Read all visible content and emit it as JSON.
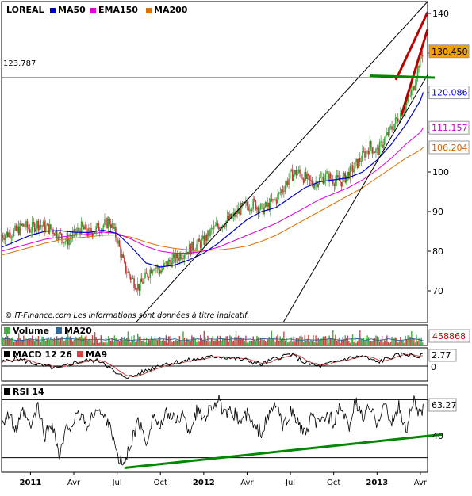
{
  "chart_data": [
    {
      "type": "line",
      "panel": "price",
      "title": "",
      "ticker": "LOREAL",
      "legend": [
        {
          "name": "MA50",
          "color": "#0000cc"
        },
        {
          "name": "EMA150",
          "color": "#dd00dd"
        },
        {
          "name": "MA200",
          "color": "#e07000"
        }
      ],
      "ylim": [
        62,
        143
      ],
      "yticks": [
        70,
        80,
        90,
        100,
        110,
        120,
        130,
        140
      ],
      "ytick_labels": [
        "70",
        "80",
        "90",
        "100",
        "",
        "",
        "",
        "140"
      ],
      "xlim_months": [
        -2,
        27.5
      ],
      "x_tick_months": [
        0,
        3,
        6,
        9,
        12,
        15,
        18,
        21,
        24,
        27
      ],
      "x_tick_labels": [
        "2011",
        "Avr",
        "Jul",
        "Oct",
        "2012",
        "Avr",
        "Jul",
        "Oct",
        "2013",
        "Avr"
      ],
      "x_bold": [
        true,
        false,
        false,
        false,
        true,
        false,
        false,
        false,
        true,
        false
      ],
      "price_badges": [
        {
          "value": "130.450",
          "y": 130.45,
          "color": "#000000",
          "bg": "#f0a000"
        },
        {
          "value": "120.086",
          "y": 120.086,
          "color": "#0000cc",
          "bg": "#ffffff"
        },
        {
          "value": "111.157",
          "y": 111.157,
          "color": "#cc00cc",
          "bg": "#ffffff"
        },
        {
          "value": "106.204",
          "y": 106.204,
          "color": "#d06000",
          "bg": "#ffffff"
        }
      ],
      "horizontal_level": {
        "label": "123.787",
        "value": 123.787
      },
      "annotation": "© IT-Finance.com     Les informations sont données à titre indicatif.",
      "close_points": [
        [
          -2,
          84
        ],
        [
          -1.5,
          84.5
        ],
        [
          -1,
          85
        ],
        [
          -0.5,
          86.5
        ],
        [
          0,
          85.5
        ],
        [
          0.5,
          87
        ],
        [
          1,
          86
        ],
        [
          1.5,
          85.5
        ],
        [
          2,
          84
        ],
        [
          2.5,
          82.5
        ],
        [
          3,
          84
        ],
        [
          3.5,
          86
        ],
        [
          4,
          84.5
        ],
        [
          4.5,
          85.5
        ],
        [
          5,
          86.5
        ],
        [
          5.5,
          87.5
        ],
        [
          6,
          83
        ],
        [
          6.5,
          76
        ],
        [
          7,
          73
        ],
        [
          7.5,
          71
        ],
        [
          8,
          73.5
        ],
        [
          8.5,
          76.5
        ],
        [
          9,
          75
        ],
        [
          9.5,
          77
        ],
        [
          10,
          78
        ],
        [
          10.5,
          79.5
        ],
        [
          11,
          80.5
        ],
        [
          11.5,
          81.5
        ],
        [
          12,
          82.5
        ],
        [
          12.5,
          85
        ],
        [
          13,
          86.5
        ],
        [
          13.5,
          87.5
        ],
        [
          14,
          88.5
        ],
        [
          14.5,
          90.5
        ],
        [
          15,
          91.5
        ],
        [
          15.5,
          92
        ],
        [
          16,
          90.5
        ],
        [
          16.5,
          91.5
        ],
        [
          17,
          93
        ],
        [
          17.5,
          96
        ],
        [
          18,
          99
        ],
        [
          18.5,
          100
        ],
        [
          19,
          98.5
        ],
        [
          19.5,
          97
        ],
        [
          20,
          98
        ],
        [
          20.5,
          99
        ],
        [
          21,
          98
        ],
        [
          21.5,
          97.5
        ],
        [
          22,
          99.5
        ],
        [
          22.5,
          101.5
        ],
        [
          23,
          104
        ],
        [
          23.5,
          106.5
        ],
        [
          24,
          105
        ],
        [
          24.5,
          108
        ],
        [
          25,
          111
        ],
        [
          25.5,
          114
        ],
        [
          26,
          117
        ],
        [
          26.5,
          121
        ],
        [
          26.8,
          126
        ],
        [
          27,
          129
        ],
        [
          27.2,
          130.45
        ]
      ],
      "ma50_points": [
        [
          -2,
          81
        ],
        [
          -1,
          82.5
        ],
        [
          0,
          84
        ],
        [
          1,
          85
        ],
        [
          2,
          85.2
        ],
        [
          3,
          84.8
        ],
        [
          4,
          84.7
        ],
        [
          5,
          85.3
        ],
        [
          6,
          84.5
        ],
        [
          7,
          81
        ],
        [
          8,
          77
        ],
        [
          9,
          76
        ],
        [
          10,
          76.5
        ],
        [
          11,
          77.8
        ],
        [
          12,
          79.5
        ],
        [
          13,
          82
        ],
        [
          14,
          85
        ],
        [
          15,
          88
        ],
        [
          16,
          90
        ],
        [
          17,
          91
        ],
        [
          18,
          93.5
        ],
        [
          19,
          96
        ],
        [
          20,
          97.5
        ],
        [
          21,
          98
        ],
        [
          22,
          98.5
        ],
        [
          23,
          100
        ],
        [
          24,
          103
        ],
        [
          25,
          107
        ],
        [
          26,
          112
        ],
        [
          27,
          118
        ],
        [
          27.2,
          120.086
        ]
      ],
      "ema150_points": [
        [
          -2,
          80
        ],
        [
          -1,
          81
        ],
        [
          0,
          82
        ],
        [
          1,
          83
        ],
        [
          2,
          83.5
        ],
        [
          3,
          84
        ],
        [
          4,
          84.3
        ],
        [
          5,
          84.8
        ],
        [
          6,
          84.5
        ],
        [
          7,
          83
        ],
        [
          8,
          81.2
        ],
        [
          9,
          80
        ],
        [
          10,
          79.5
        ],
        [
          11,
          79.5
        ],
        [
          12,
          80
        ],
        [
          13,
          81
        ],
        [
          14,
          82.5
        ],
        [
          15,
          84
        ],
        [
          16,
          85.5
        ],
        [
          17,
          87
        ],
        [
          18,
          89
        ],
        [
          19,
          91
        ],
        [
          20,
          93
        ],
        [
          21,
          94.5
        ],
        [
          22,
          96
        ],
        [
          23,
          98
        ],
        [
          24,
          100.5
        ],
        [
          25,
          103.5
        ],
        [
          26,
          107
        ],
        [
          27,
          110
        ],
        [
          27.2,
          111.157
        ]
      ],
      "ma200_points": [
        [
          -2,
          79
        ],
        [
          -1,
          80
        ],
        [
          0,
          81
        ],
        [
          1,
          82
        ],
        [
          2,
          82.8
        ],
        [
          3,
          83.3
        ],
        [
          4,
          83.6
        ],
        [
          5,
          84
        ],
        [
          6,
          84.1
        ],
        [
          7,
          83.5
        ],
        [
          8,
          82.3
        ],
        [
          9,
          81.3
        ],
        [
          10,
          80.7
        ],
        [
          11,
          80.3
        ],
        [
          12,
          80.2
        ],
        [
          13,
          80.3
        ],
        [
          14,
          80.7
        ],
        [
          15,
          81.3
        ],
        [
          16,
          82.5
        ],
        [
          17,
          84
        ],
        [
          18,
          86
        ],
        [
          19,
          88
        ],
        [
          20,
          90
        ],
        [
          21,
          92
        ],
        [
          22,
          94
        ],
        [
          23,
          96
        ],
        [
          24,
          98.5
        ],
        [
          25,
          101
        ],
        [
          26,
          103.5
        ],
        [
          27,
          105.5
        ],
        [
          27.2,
          106.204
        ]
      ],
      "trend_lines": [
        {
          "color": "#000000",
          "from": [
            7.3,
            62
          ],
          "to": [
            27.5,
            143
          ]
        },
        {
          "color": "#000000",
          "from": [
            17.5,
            62
          ],
          "to": [
            27.5,
            124.5
          ]
        },
        {
          "color": "#bb0000",
          "from": [
            25.3,
            123.2
          ],
          "to": [
            27.5,
            140.3
          ]
        },
        {
          "color": "#bb0000",
          "from": [
            25.7,
            114.5
          ],
          "to": [
            27.5,
            136
          ]
        },
        {
          "color": "#008800",
          "from": [
            23.5,
            124.3
          ],
          "to": [
            28,
            123.8
          ]
        }
      ]
    },
    {
      "type": "bar",
      "panel": "volume",
      "legend": [
        {
          "name": "Volume",
          "color": "#44aa44"
        },
        {
          "name": "MA20",
          "color": "#336699"
        }
      ],
      "last_value": "458868",
      "last_value_color": "#cc0000"
    },
    {
      "type": "line",
      "panel": "macd",
      "legend": [
        {
          "name": "MACD 12 26",
          "color": "#000000"
        },
        {
          "name": "MA9",
          "color": "#cc4444"
        }
      ],
      "ylim": [
        -4,
        4
      ],
      "yticks": [
        0
      ],
      "ytick_labels": [
        "0"
      ],
      "last_value": "2.77",
      "points": [
        [
          -2,
          0.5
        ],
        [
          -1,
          1.5
        ],
        [
          0,
          0.5
        ],
        [
          1,
          -0.5
        ],
        [
          2,
          -1
        ],
        [
          3,
          0.5
        ],
        [
          4,
          1
        ],
        [
          5,
          0.8
        ],
        [
          6,
          -2.5
        ],
        [
          7,
          -3
        ],
        [
          8,
          -1.5
        ],
        [
          9,
          0
        ],
        [
          10,
          0.5
        ],
        [
          11,
          1
        ],
        [
          12,
          1.5
        ],
        [
          13,
          2
        ],
        [
          14,
          1.5
        ],
        [
          15,
          1
        ],
        [
          16,
          0
        ],
        [
          17,
          1.5
        ],
        [
          18,
          2.5
        ],
        [
          19,
          0.5
        ],
        [
          20,
          -0.5
        ],
        [
          21,
          0.5
        ],
        [
          22,
          1.5
        ],
        [
          23,
          2
        ],
        [
          24,
          0.5
        ],
        [
          25,
          1.8
        ],
        [
          26,
          2.5
        ],
        [
          27,
          1.8
        ],
        [
          27.2,
          2.77
        ]
      ]
    },
    {
      "type": "line",
      "panel": "rsi",
      "legend": [
        {
          "name": "RSI 14",
          "color": "#000000"
        }
      ],
      "ylim": [
        20,
        80
      ],
      "yticks": [
        70,
        40,
        30
      ],
      "ytick_labels": [
        "",
        "40",
        ""
      ],
      "last_value": "63.27",
      "points": [
        [
          -2,
          55
        ],
        [
          -1.5,
          60
        ],
        [
          -1,
          48
        ],
        [
          -0.5,
          62
        ],
        [
          0,
          50
        ],
        [
          0.5,
          65
        ],
        [
          1,
          45
        ],
        [
          1.5,
          55
        ],
        [
          2,
          30
        ],
        [
          2.5,
          50
        ],
        [
          3,
          55
        ],
        [
          3.5,
          60
        ],
        [
          4,
          50
        ],
        [
          4.5,
          65
        ],
        [
          5,
          58
        ],
        [
          5.5,
          55
        ],
        [
          6,
          30
        ],
        [
          6.5,
          25
        ],
        [
          7,
          42
        ],
        [
          7.5,
          55
        ],
        [
          8,
          40
        ],
        [
          8.5,
          60
        ],
        [
          9,
          50
        ],
        [
          9.5,
          62
        ],
        [
          10,
          55
        ],
        [
          10.5,
          60
        ],
        [
          11,
          48
        ],
        [
          11.5,
          62
        ],
        [
          12,
          58
        ],
        [
          12.5,
          65
        ],
        [
          13,
          70
        ],
        [
          13.5,
          58
        ],
        [
          14,
          62
        ],
        [
          14.5,
          55
        ],
        [
          15,
          60
        ],
        [
          15.5,
          50
        ],
        [
          16,
          48
        ],
        [
          16.5,
          58
        ],
        [
          17,
          68
        ],
        [
          17.5,
          50
        ],
        [
          18,
          62
        ],
        [
          18.5,
          55
        ],
        [
          19,
          45
        ],
        [
          19.5,
          58
        ],
        [
          20,
          52
        ],
        [
          20.5,
          60
        ],
        [
          21,
          55
        ],
        [
          21.5,
          65
        ],
        [
          22,
          50
        ],
        [
          22.5,
          68
        ],
        [
          23,
          58
        ],
        [
          23.5,
          64
        ],
        [
          24,
          55
        ],
        [
          24.5,
          68
        ],
        [
          25,
          52
        ],
        [
          25.5,
          66
        ],
        [
          26,
          48
        ],
        [
          26.5,
          70
        ],
        [
          27,
          58
        ],
        [
          27.2,
          63.27
        ]
      ],
      "trend_line": {
        "color": "#008800",
        "from": [
          6.5,
          23
        ],
        "to": [
          28.5,
          46
        ]
      }
    }
  ]
}
